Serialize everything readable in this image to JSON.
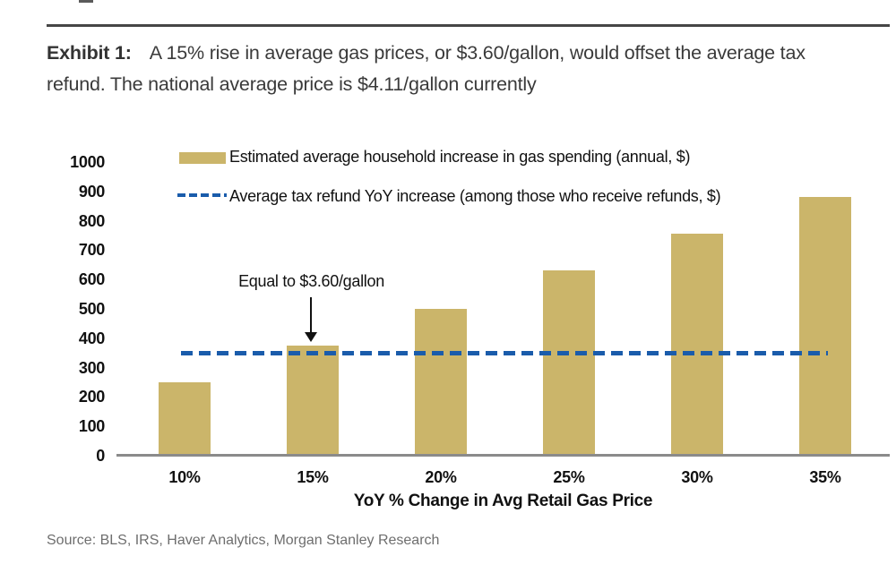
{
  "header": {
    "exhibit_label": "Exhibit 1:",
    "title": "A 15% rise in average gas prices, or $3.60/gallon, would offset the average tax refund. The national average price is $4.11/gallon currently"
  },
  "chart_data": {
    "type": "bar",
    "title": "",
    "categories": [
      "10%",
      "15%",
      "20%",
      "25%",
      "30%",
      "35%"
    ],
    "series": [
      {
        "name": "Estimated average household increase in gas spending (annual, $)",
        "type": "bar",
        "color": "#CBB56A",
        "values": [
          250,
          375,
          500,
          630,
          755,
          880
        ]
      },
      {
        "name": "Average tax refund YoY increase (among those who receive refunds, $)",
        "type": "dashed-line",
        "color": "#1A5CAB",
        "value": 350
      }
    ],
    "xlabel": "YoY % Change in Avg Retail Gas Price",
    "ylabel": "",
    "ylim": [
      0,
      1000
    ],
    "yticks": [
      0,
      100,
      200,
      300,
      400,
      500,
      600,
      700,
      800,
      900,
      1000
    ],
    "grid": false,
    "legend_position": "top-left",
    "annotation": {
      "text": "Equal to $3.60/gallon",
      "target_category": "15%",
      "target_value": 375
    }
  },
  "footer": {
    "source": "Source: BLS, IRS, Haver Analytics, Morgan Stanley Research"
  }
}
